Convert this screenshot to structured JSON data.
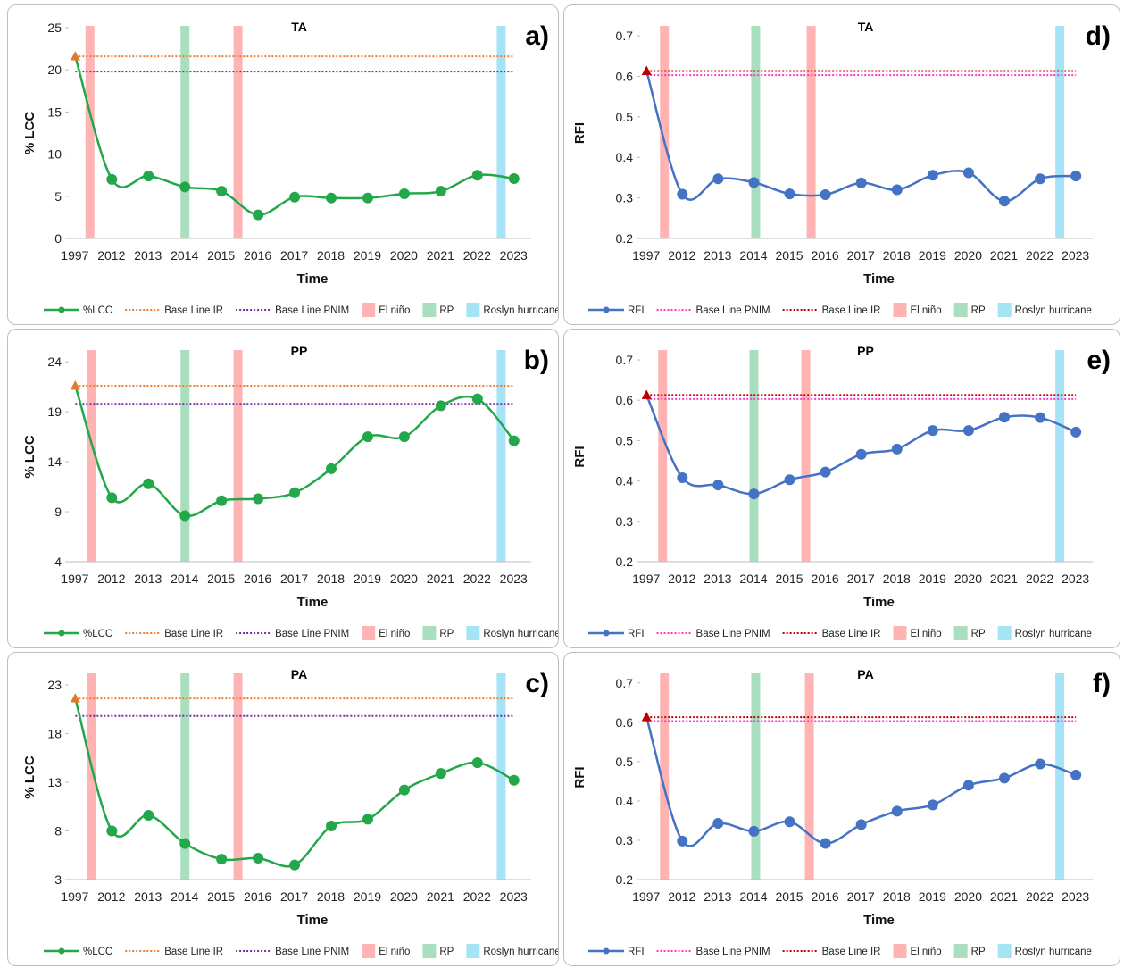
{
  "legend_labels": {
    "lcc": "%LCC",
    "rfi": "RFI",
    "baseline_ir": "Base Line IR",
    "baseline_pnim": "Base Line PNIM",
    "el_nino": "El niño",
    "rp": "RP",
    "roslyn": "Roslyn hurricane"
  },
  "colors": {
    "lcc_line": "#22a84a",
    "rfi_line": "#4472c4",
    "baseline_ir_lcc": "#ed7d31",
    "baseline_pnim_lcc": "#7030a0",
    "baseline_pnim_rfi": "#ff33cc",
    "baseline_ir_rfi": "#c00000",
    "el_nino": "#ffb3b3",
    "rp": "#a9dfbf",
    "roslyn": "#a6e3f7",
    "triangle_lcc": "#e07a2e",
    "triangle_rfi": "#c00000"
  },
  "chart_data": [
    {
      "id": "a",
      "type": "line",
      "panel_label": "a)",
      "title": "TA",
      "xlabel": "Time",
      "ylabel": "% LCC",
      "categories": [
        "1997",
        "2012",
        "2013",
        "2014",
        "2015",
        "2016",
        "2017",
        "2018",
        "2019",
        "2020",
        "2021",
        "2022",
        "2023"
      ],
      "series": [
        {
          "name": "%LCC",
          "values": [
            21.6,
            7.0,
            7.4,
            6.1,
            5.6,
            2.8,
            4.9,
            4.8,
            4.8,
            5.3,
            5.6,
            7.5,
            7.1
          ]
        }
      ],
      "baseline_ir": 21.6,
      "baseline_pnim": 19.8,
      "ylim": [
        0,
        25
      ],
      "yticks": [
        0,
        5,
        10,
        15,
        20,
        25
      ],
      "bands": [
        {
          "type": "el_nino",
          "center": 0.4
        },
        {
          "type": "rp",
          "center": 3.0
        },
        {
          "type": "el_nino",
          "center": 4.45
        },
        {
          "type": "roslyn",
          "center": 11.65
        }
      ],
      "legend": [
        "lcc",
        "baseline_ir",
        "baseline_pnim",
        "el_nino",
        "rp",
        "roslyn"
      ]
    },
    {
      "id": "b",
      "type": "line",
      "panel_label": "b)",
      "title": "PP",
      "xlabel": "Time",
      "ylabel": "% LCC",
      "categories": [
        "1997",
        "2012",
        "2013",
        "2014",
        "2015",
        "2016",
        "2017",
        "2018",
        "2019",
        "2020",
        "2021",
        "2022",
        "2023"
      ],
      "series": [
        {
          "name": "%LCC",
          "values": [
            21.6,
            10.4,
            11.8,
            8.6,
            10.1,
            10.3,
            10.9,
            13.3,
            16.5,
            16.5,
            19.6,
            20.3,
            16.1
          ]
        }
      ],
      "baseline_ir": 21.6,
      "baseline_pnim": 19.8,
      "ylim": [
        4,
        25
      ],
      "yticks": [
        4,
        9,
        14,
        19,
        24
      ],
      "bands": [
        {
          "type": "el_nino",
          "center": 0.45
        },
        {
          "type": "rp",
          "center": 3.0
        },
        {
          "type": "el_nino",
          "center": 4.45
        },
        {
          "type": "roslyn",
          "center": 11.65
        }
      ],
      "legend": [
        "lcc",
        "baseline_ir",
        "baseline_pnim",
        "el_nino",
        "rp",
        "roslyn"
      ]
    },
    {
      "id": "c",
      "type": "line",
      "panel_label": "c)",
      "title": "PA",
      "xlabel": "Time",
      "ylabel": "% LCC",
      "categories": [
        "1997",
        "2012",
        "2013",
        "2014",
        "2015",
        "2016",
        "2017",
        "2018",
        "2019",
        "2020",
        "2021",
        "2022",
        "2023"
      ],
      "series": [
        {
          "name": "%LCC",
          "values": [
            21.6,
            8.0,
            9.6,
            6.7,
            5.1,
            5.2,
            4.5,
            8.5,
            9.2,
            12.2,
            13.9,
            15.0,
            13.2
          ]
        }
      ],
      "baseline_ir": 21.6,
      "baseline_pnim": 19.8,
      "ylim": [
        3,
        24
      ],
      "yticks": [
        3,
        8,
        13,
        18,
        23
      ],
      "bands": [
        {
          "type": "el_nino",
          "center": 0.45
        },
        {
          "type": "rp",
          "center": 3.0
        },
        {
          "type": "el_nino",
          "center": 4.45
        },
        {
          "type": "roslyn",
          "center": 11.65
        }
      ],
      "legend": [
        "lcc",
        "baseline_ir",
        "baseline_pnim",
        "el_nino",
        "rp",
        "roslyn"
      ]
    },
    {
      "id": "d",
      "type": "line",
      "panel_label": "d)",
      "title": "TA",
      "xlabel": "Time",
      "ylabel": "RFI",
      "categories": [
        "1997",
        "2012",
        "2013",
        "2014",
        "2015",
        "2016",
        "2017",
        "2018",
        "2019",
        "2020",
        "2021",
        "2022",
        "2023"
      ],
      "series": [
        {
          "name": "RFI",
          "values": [
            0.613,
            0.309,
            0.347,
            0.338,
            0.31,
            0.308,
            0.337,
            0.32,
            0.356,
            0.362,
            0.292,
            0.347,
            0.354
          ]
        }
      ],
      "baseline_ir": 0.613,
      "baseline_pnim": 0.603,
      "ylim": [
        0.2,
        0.72
      ],
      "yticks": [
        0.2,
        0.3,
        0.4,
        0.5,
        0.6,
        0.7
      ],
      "bands": [
        {
          "type": "el_nino",
          "center": 0.5
        },
        {
          "type": "rp",
          "center": 3.05
        },
        {
          "type": "el_nino",
          "center": 4.6
        },
        {
          "type": "roslyn",
          "center": 11.55
        }
      ],
      "legend": [
        "rfi",
        "baseline_pnim",
        "baseline_ir",
        "el_nino",
        "rp",
        "roslyn"
      ]
    },
    {
      "id": "e",
      "type": "line",
      "panel_label": "e)",
      "title": "PP",
      "xlabel": "Time",
      "ylabel": "RFI",
      "categories": [
        "1997",
        "2012",
        "2013",
        "2014",
        "2015",
        "2016",
        "2017",
        "2018",
        "2019",
        "2020",
        "2021",
        "2022",
        "2023"
      ],
      "series": [
        {
          "name": "RFI",
          "values": [
            0.613,
            0.408,
            0.39,
            0.368,
            0.403,
            0.422,
            0.466,
            0.479,
            0.525,
            0.525,
            0.558,
            0.557,
            0.521
          ]
        }
      ],
      "baseline_ir": 0.613,
      "baseline_pnim": 0.603,
      "ylim": [
        0.2,
        0.72
      ],
      "yticks": [
        0.2,
        0.3,
        0.4,
        0.5,
        0.6,
        0.7
      ],
      "bands": [
        {
          "type": "el_nino",
          "center": 0.45
        },
        {
          "type": "rp",
          "center": 3.0
        },
        {
          "type": "el_nino",
          "center": 4.45
        },
        {
          "type": "roslyn",
          "center": 11.55
        }
      ],
      "legend": [
        "rfi",
        "baseline_pnim",
        "baseline_ir",
        "el_nino",
        "rp",
        "roslyn"
      ]
    },
    {
      "id": "f",
      "type": "line",
      "panel_label": "f)",
      "title": "PA",
      "xlabel": "Time",
      "ylabel": "RFI",
      "categories": [
        "1997",
        "2012",
        "2013",
        "2014",
        "2015",
        "2016",
        "2017",
        "2018",
        "2019",
        "2020",
        "2021",
        "2022",
        "2023"
      ],
      "series": [
        {
          "name": "RFI",
          "values": [
            0.613,
            0.298,
            0.343,
            0.323,
            0.347,
            0.292,
            0.34,
            0.374,
            0.39,
            0.44,
            0.458,
            0.494,
            0.466
          ]
        }
      ],
      "baseline_ir": 0.613,
      "baseline_pnim": 0.603,
      "ylim": [
        0.2,
        0.72
      ],
      "yticks": [
        0.2,
        0.3,
        0.4,
        0.5,
        0.6,
        0.7
      ],
      "bands": [
        {
          "type": "el_nino",
          "center": 0.5
        },
        {
          "type": "rp",
          "center": 3.05
        },
        {
          "type": "el_nino",
          "center": 4.55
        },
        {
          "type": "roslyn",
          "center": 11.55
        }
      ],
      "legend": [
        "rfi",
        "baseline_pnim",
        "baseline_ir",
        "el_nino",
        "rp",
        "roslyn"
      ]
    }
  ]
}
